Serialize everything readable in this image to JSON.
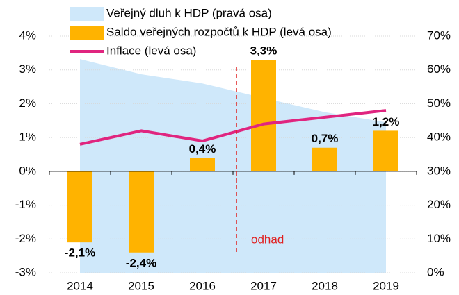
{
  "chart_data": {
    "type": "combo",
    "categories": [
      "2014",
      "2015",
      "2016",
      "2017",
      "2018",
      "2019"
    ],
    "series": [
      {
        "name": "Veřejný dluh k HDP (pravá osa)",
        "type": "area",
        "axis": "y2",
        "color": "#cfe8fa",
        "values": [
          63.2,
          58.7,
          56.0,
          51.7,
          47.5,
          44.5
        ]
      },
      {
        "name": "Saldo veřejných rozpočtů k HDP (levá osa)",
        "type": "bar",
        "color": "#ffb300",
        "values": [
          -2.1,
          -2.4,
          0.4,
          3.3,
          0.7,
          1.2
        ],
        "value_labels": [
          "-2,1%",
          "-2,4%",
          "0,4%",
          "3,3%",
          "0,7%",
          "1,2%"
        ]
      },
      {
        "name": "Inflace (levá osa)",
        "type": "line",
        "color": "#e0257f",
        "values": [
          0.8,
          1.2,
          0.9,
          1.4,
          1.6,
          1.8
        ]
      }
    ],
    "ylim": [
      -3,
      4
    ],
    "yticks": [
      {
        "value": -3,
        "label": "-3%"
      },
      {
        "value": -2,
        "label": "-2%"
      },
      {
        "value": -1,
        "label": "-1%"
      },
      {
        "value": 0,
        "label": "0%"
      },
      {
        "value": 1,
        "label": "1%"
      },
      {
        "value": 2,
        "label": "2%"
      },
      {
        "value": 3,
        "label": "3%"
      },
      {
        "value": 4,
        "label": "4%"
      }
    ],
    "y2lim": [
      0,
      70
    ],
    "y2ticks": [
      {
        "value": 0,
        "label": "0%"
      },
      {
        "value": 10,
        "label": "10%"
      },
      {
        "value": 20,
        "label": "20%"
      },
      {
        "value": 30,
        "label": "30%"
      },
      {
        "value": 40,
        "label": "40%"
      },
      {
        "value": 50,
        "label": "50%"
      },
      {
        "value": 60,
        "label": "60%"
      },
      {
        "value": 70,
        "label": "70%"
      }
    ],
    "grid": true,
    "annotation": "odhad"
  }
}
